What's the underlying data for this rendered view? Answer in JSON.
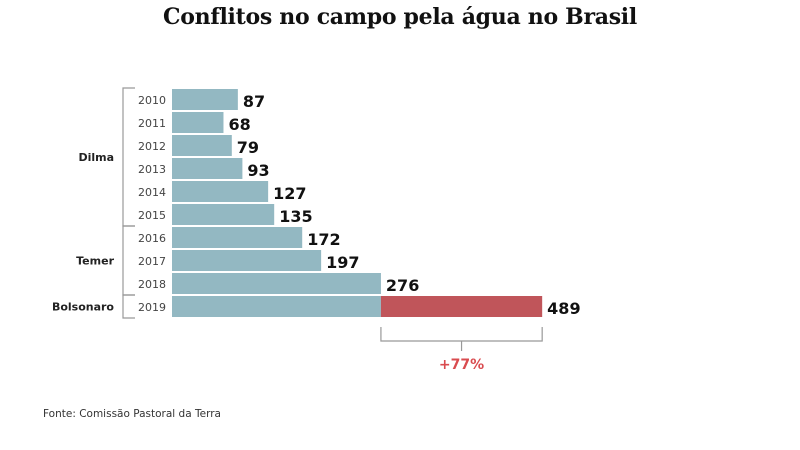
{
  "chart_data": {
    "type": "bar",
    "orientation": "horizontal",
    "title": "Conflitos no campo pela água no Brasil",
    "categories": [
      "2010",
      "2011",
      "2012",
      "2013",
      "2014",
      "2015",
      "2016",
      "2017",
      "2018",
      "2019"
    ],
    "values": [
      87,
      68,
      79,
      93,
      127,
      135,
      172,
      197,
      276,
      489
    ],
    "data_labels": [
      "87",
      "68",
      "79",
      "93",
      "127",
      "135",
      "172",
      "197",
      "276",
      "489"
    ],
    "groups": [
      {
        "label": "Dilma",
        "years": [
          "2010",
          "2011",
          "2012",
          "2013",
          "2014",
          "2015"
        ]
      },
      {
        "label": "Temer",
        "years": [
          "2016",
          "2017",
          "2018"
        ]
      },
      {
        "label": "Bolsonaro",
        "years": [
          "2019"
        ]
      }
    ],
    "highlight": {
      "category": "2019",
      "baseline_value": 276,
      "increase_value": 489,
      "annotation": "+77%"
    },
    "xlabel": "",
    "ylabel": "",
    "grid": false,
    "colors": {
      "bar": "#93b8c2",
      "highlight": "#c0555a",
      "annotation": "#d94b4f",
      "bracket": "#999999"
    }
  },
  "source": "Fonte: Comissão Pastoral da Terra"
}
